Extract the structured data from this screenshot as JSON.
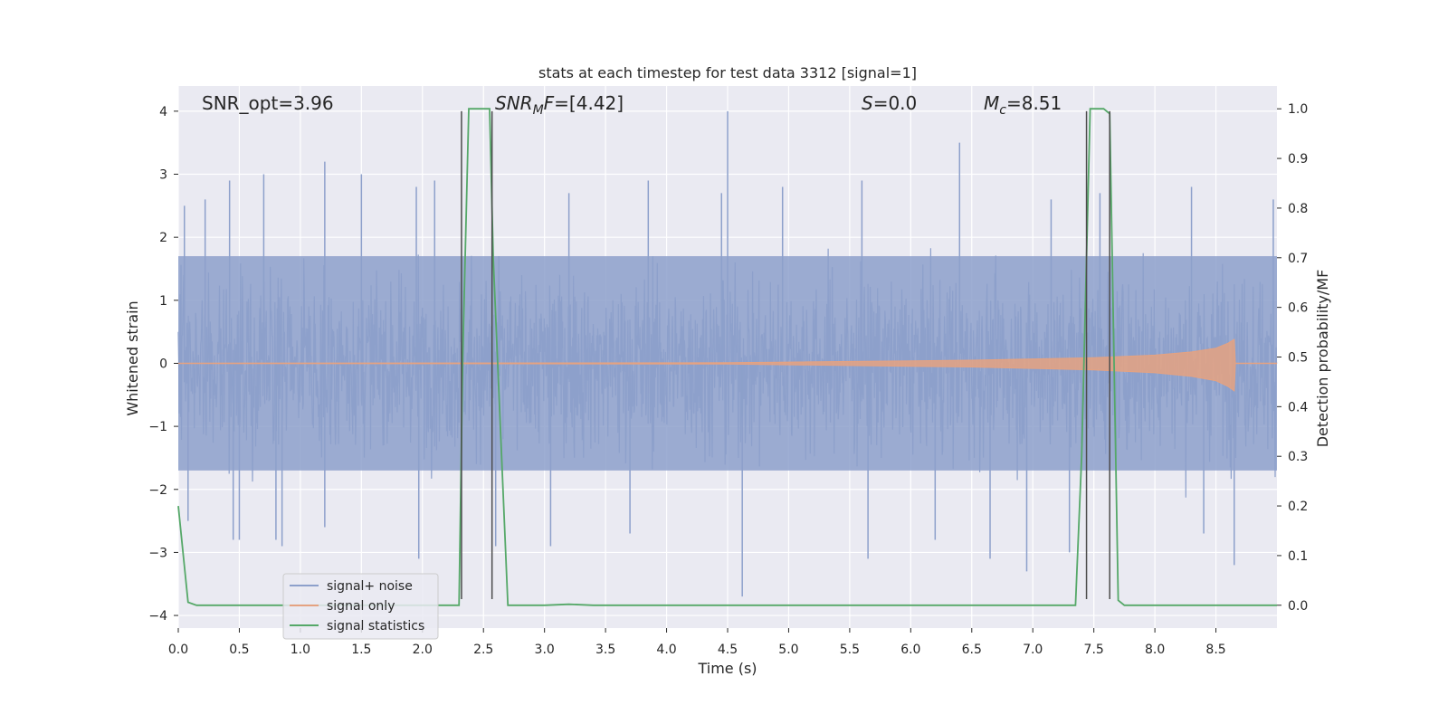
{
  "chart_data": {
    "type": "line",
    "title": "stats at each timestep for test data 3312 [signal=1]",
    "xlabel": "Time (s)",
    "ylabel_left": "Whitened strain",
    "ylabel_right": "Detection probability/MF",
    "xlim": [
      0.0,
      9.0
    ],
    "ylim_left": [
      -4.2,
      4.4
    ],
    "ylim_right": [
      -0.046,
      1.046
    ],
    "x_ticks": [
      "0.0",
      "0.5",
      "1.0",
      "1.5",
      "2.0",
      "2.5",
      "3.0",
      "3.5",
      "4.0",
      "4.5",
      "5.0",
      "5.5",
      "6.0",
      "6.5",
      "7.0",
      "7.5",
      "8.0",
      "8.5"
    ],
    "y_left_ticks": [
      "4",
      "3",
      "2",
      "1",
      "0",
      "−1",
      "−2",
      "−3",
      "−4"
    ],
    "y_right_ticks": [
      "1.0",
      "0.9",
      "0.8",
      "0.7",
      "0.6",
      "0.5",
      "0.4",
      "0.3",
      "0.2",
      "0.1",
      "0.0"
    ],
    "grid": true,
    "legend_position": "lower-left",
    "annotations": {
      "snr_opt": "SNR_opt=3.96",
      "snr_mf_main": "SNR",
      "snr_mf_sub": "M",
      "snr_mf_tail": "F",
      "snr_mf_value": "=[4.42]",
      "s_main": "S",
      "s_value": "=0.0",
      "mc_main": "M",
      "mc_sub": "c",
      "mc_value": "=8.51"
    },
    "series": [
      {
        "name": "signal+ noise",
        "color": "#8da0cb",
        "axis": "left",
        "style": "dense noise, band approx ±1.7 with spikes to ±3",
        "peak_values": [
          [
            0.05,
            2.5
          ],
          [
            0.08,
            -2.5
          ],
          [
            0.22,
            2.6
          ],
          [
            0.42,
            2.9
          ],
          [
            0.45,
            -2.8
          ],
          [
            0.5,
            -2.8
          ],
          [
            0.7,
            3.0
          ],
          [
            0.8,
            -2.8
          ],
          [
            0.85,
            -2.9
          ],
          [
            1.2,
            3.2
          ],
          [
            1.2,
            -2.6
          ],
          [
            1.5,
            3.0
          ],
          [
            1.95,
            2.8
          ],
          [
            1.97,
            -3.1
          ],
          [
            2.1,
            2.9
          ],
          [
            2.6,
            -2.9
          ],
          [
            3.2,
            2.7
          ],
          [
            3.05,
            -2.9
          ],
          [
            3.7,
            -2.7
          ],
          [
            3.85,
            2.9
          ],
          [
            4.45,
            2.7
          ],
          [
            4.5,
            4.0
          ],
          [
            4.62,
            -3.7
          ],
          [
            4.95,
            2.8
          ],
          [
            5.6,
            2.9
          ],
          [
            5.65,
            -3.1
          ],
          [
            6.2,
            -2.8
          ],
          [
            6.4,
            3.5
          ],
          [
            6.65,
            -3.1
          ],
          [
            6.95,
            -3.3
          ],
          [
            7.15,
            2.6
          ],
          [
            7.3,
            -3.0
          ],
          [
            7.55,
            2.7
          ],
          [
            8.3,
            2.8
          ],
          [
            8.4,
            -2.7
          ],
          [
            8.65,
            -3.2
          ],
          [
            8.97,
            2.6
          ]
        ]
      },
      {
        "name": "signal only",
        "color": "#e5a281",
        "axis": "left",
        "x": [
          0.0,
          4.5,
          5.0,
          6.0,
          6.5,
          7.0,
          7.5,
          8.0,
          8.3,
          8.5,
          8.6,
          8.65,
          8.66,
          9.0
        ],
        "amplitude": [
          0.0,
          0.01,
          0.02,
          0.04,
          0.05,
          0.07,
          0.09,
          0.13,
          0.18,
          0.24,
          0.32,
          0.38,
          0.0,
          0.0
        ]
      },
      {
        "name": "signal statistics",
        "color": "#55a868",
        "axis": "right",
        "x": [
          0.0,
          0.08,
          0.15,
          2.3,
          2.33,
          2.38,
          2.45,
          2.55,
          2.58,
          2.7,
          3.0,
          3.2,
          3.4,
          7.35,
          7.4,
          7.47,
          7.52,
          7.58,
          7.63,
          7.7,
          7.75,
          9.0
        ],
        "y": [
          0.2,
          0.006,
          0.0,
          0.0,
          0.5,
          1.0,
          1.0,
          1.0,
          0.7,
          0.0,
          0.0,
          0.002,
          0.0,
          0.0,
          0.3,
          1.0,
          1.0,
          1.0,
          0.99,
          0.01,
          0.0,
          0.0
        ]
      }
    ],
    "vertical_markers": {
      "color": "#4c4c4c",
      "x": [
        2.32,
        2.57,
        7.44,
        7.63
      ],
      "y_bottom": [
        -3.74,
        -3.74,
        -3.74,
        -3.74
      ],
      "y_top": [
        4.0,
        4.0,
        4.0,
        4.0
      ]
    }
  }
}
